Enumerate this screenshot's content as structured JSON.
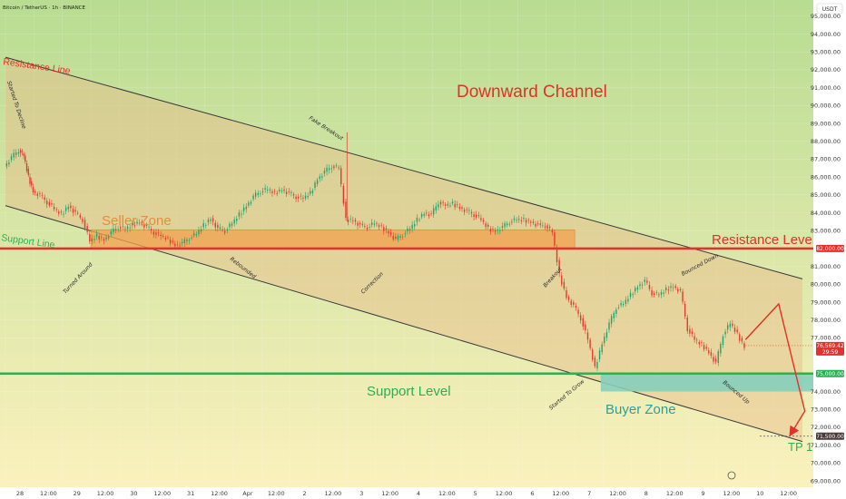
{
  "header": {
    "symbol_line": "Bitcoin / TetherUS · 1h · BINANCE",
    "currency": "USDT"
  },
  "colors": {
    "bg_top": "#b8dc92",
    "bg_bottom": "#fbf1bd",
    "channel_fill": "#e9ba8a",
    "zone_seller": "#f2a24f",
    "zone_buyer": "#86cfbd",
    "resistance": "#e2322b",
    "support": "#2fae55",
    "title": "#e0322a",
    "buyer_text": "#2f9d9c",
    "candle_up": "#24a16b",
    "candle_down": "#e03a2f",
    "arrow": "#e23127"
  },
  "chart_data": {
    "type": "candlestick",
    "y_axis": {
      "min": 69000,
      "max": 95500,
      "ticks": [
        "95,000.00",
        "94,000.00",
        "93,000.00",
        "92,000.00",
        "91,000.00",
        "90,000.00",
        "89,000.00",
        "88,000.00",
        "87,000.00",
        "86,000.00",
        "85,000.00",
        "84,000.00",
        "83,000.00",
        "81,000.00",
        "80,000.00",
        "79,000.00",
        "78,000.00",
        "77,000.00",
        "74,000.00",
        "73,000.00",
        "72,000.00",
        "71,000.00",
        "70,000.00",
        "69,000.00"
      ],
      "tick_values": [
        95000,
        94000,
        93000,
        92000,
        91000,
        90000,
        89000,
        88000,
        87000,
        86000,
        85000,
        84000,
        83000,
        81000,
        80000,
        79000,
        78000,
        77000,
        74000,
        73000,
        72000,
        71000,
        70000,
        69000
      ]
    },
    "x_axis": {
      "ticks": [
        "28",
        "12:00",
        "29",
        "12:00",
        "30",
        "12:00",
        "31",
        "12:00",
        "Apr",
        "12:00",
        "2",
        "12:00",
        "3",
        "12:00",
        "4",
        "12:00",
        "5",
        "12:00",
        "6",
        "12:00",
        "7",
        "12:00",
        "8",
        "12:00",
        "9",
        "12:00",
        "10",
        "12:00"
      ],
      "tick_hours": [
        0,
        12,
        24,
        36,
        48,
        60,
        72,
        84,
        96,
        108,
        120,
        132,
        144,
        156,
        168,
        180,
        192,
        204,
        216,
        228,
        240,
        252,
        264,
        276,
        288,
        300,
        312,
        324
      ],
      "range_hours": [
        0,
        336
      ]
    },
    "price_labels": [
      {
        "value": 82000,
        "text": "82,000.00",
        "color": "#e2322b"
      },
      {
        "value": 76569.42,
        "text": "76,569.42",
        "color": "#e2322b"
      },
      {
        "value": 75000,
        "text": "75,000.00",
        "color": "#2fae55"
      },
      {
        "value": 71500,
        "text": "71,500.00",
        "color": "#4a3a3a"
      }
    ],
    "countdown": "29:59",
    "resistance_level": 82000,
    "support_level": 75000,
    "tp_level": 71500,
    "seller_zone": [
      82000,
      83050
    ],
    "buyer_zone": [
      74000,
      75000
    ],
    "channel": {
      "upper": {
        "from": [
          0,
          92700
        ],
        "to": [
          336,
          80300
        ]
      },
      "lower": {
        "from": [
          0,
          84400
        ],
        "to": [
          336,
          71200
        ]
      }
    },
    "projection": [
      [
        312,
        76900
      ],
      [
        326,
        78900
      ],
      [
        337,
        72900
      ],
      [
        331,
        71600
      ]
    ],
    "candles": [
      [
        0,
        86600
      ],
      [
        3,
        87100
      ],
      [
        6,
        87500
      ],
      [
        8,
        87200
      ],
      [
        10,
        86000
      ],
      [
        12,
        85200
      ],
      [
        15,
        85000
      ],
      [
        18,
        84600
      ],
      [
        21,
        84200
      ],
      [
        24,
        83900
      ],
      [
        27,
        84400
      ],
      [
        30,
        84000
      ],
      [
        33,
        83600
      ],
      [
        36,
        82400
      ],
      [
        39,
        82700
      ],
      [
        42,
        82500
      ],
      [
        45,
        82900
      ],
      [
        48,
        83200
      ],
      [
        51,
        83100
      ],
      [
        54,
        83300
      ],
      [
        57,
        83500
      ],
      [
        60,
        83200
      ],
      [
        63,
        82900
      ],
      [
        66,
        82700
      ],
      [
        69,
        82500
      ],
      [
        72,
        82200
      ],
      [
        75,
        82300
      ],
      [
        78,
        82600
      ],
      [
        81,
        82800
      ],
      [
        84,
        83300
      ],
      [
        87,
        83700
      ],
      [
        90,
        83100
      ],
      [
        93,
        83000
      ],
      [
        96,
        83400
      ],
      [
        99,
        83900
      ],
      [
        102,
        84400
      ],
      [
        105,
        84900
      ],
      [
        108,
        85200
      ],
      [
        111,
        85300
      ],
      [
        114,
        85100
      ],
      [
        117,
        85300
      ],
      [
        120,
        85100
      ],
      [
        123,
        84900
      ],
      [
        126,
        84800
      ],
      [
        129,
        85100
      ],
      [
        132,
        85900
      ],
      [
        135,
        86300
      ],
      [
        138,
        86600
      ],
      [
        141,
        86500
      ],
      [
        144,
        83600
      ],
      [
        147,
        83600
      ],
      [
        150,
        83300
      ],
      [
        153,
        83200
      ],
      [
        156,
        83400
      ],
      [
        159,
        83200
      ],
      [
        162,
        82900
      ],
      [
        165,
        82500
      ],
      [
        168,
        82800
      ],
      [
        171,
        83100
      ],
      [
        174,
        83600
      ],
      [
        177,
        84000
      ],
      [
        180,
        83900
      ],
      [
        183,
        84600
      ],
      [
        186,
        84400
      ],
      [
        189,
        84500
      ],
      [
        192,
        84300
      ],
      [
        195,
        84100
      ],
      [
        198,
        83900
      ],
      [
        201,
        83600
      ],
      [
        204,
        83100
      ],
      [
        207,
        83000
      ],
      [
        210,
        83200
      ],
      [
        213,
        83500
      ],
      [
        216,
        83600
      ],
      [
        219,
        83600
      ],
      [
        222,
        83500
      ],
      [
        225,
        83300
      ],
      [
        228,
        83300
      ],
      [
        231,
        82900
      ],
      [
        234,
        80500
      ],
      [
        237,
        79300
      ],
      [
        240,
        78800
      ],
      [
        243,
        78100
      ],
      [
        246,
        76900
      ],
      [
        249,
        75300
      ],
      [
        252,
        76700
      ],
      [
        255,
        77800
      ],
      [
        258,
        78700
      ],
      [
        261,
        78900
      ],
      [
        264,
        79400
      ],
      [
        267,
        79900
      ],
      [
        270,
        80200
      ],
      [
        273,
        79500
      ],
      [
        276,
        79400
      ],
      [
        279,
        79700
      ],
      [
        282,
        79900
      ],
      [
        285,
        79600
      ],
      [
        288,
        77500
      ],
      [
        291,
        76900
      ],
      [
        294,
        76600
      ],
      [
        297,
        76200
      ],
      [
        300,
        75600
      ],
      [
        303,
        77200
      ],
      [
        306,
        77800
      ],
      [
        309,
        77200
      ],
      [
        312,
        76500
      ]
    ],
    "annotations": {
      "title": "Downward Channel",
      "resistance_line": "Resistance Line",
      "support_line": "Support Line",
      "seller_zone": "Seller Zone",
      "buyer_zone": "Buyer Zone",
      "resistance_level": "Resistance Level",
      "support_level": "Support Level",
      "tp": "TP 1",
      "started_decline": "Started To Decline",
      "fake_breakout": "Fake Breakout",
      "turned_around": "Turned Around",
      "rebounded": "Rebounded",
      "correction": "Correction",
      "breakout": "Breakout",
      "started_grow": "Started To Grow",
      "bounced_down": "Bounced Down",
      "bounced_up": "Bounced Up"
    }
  }
}
